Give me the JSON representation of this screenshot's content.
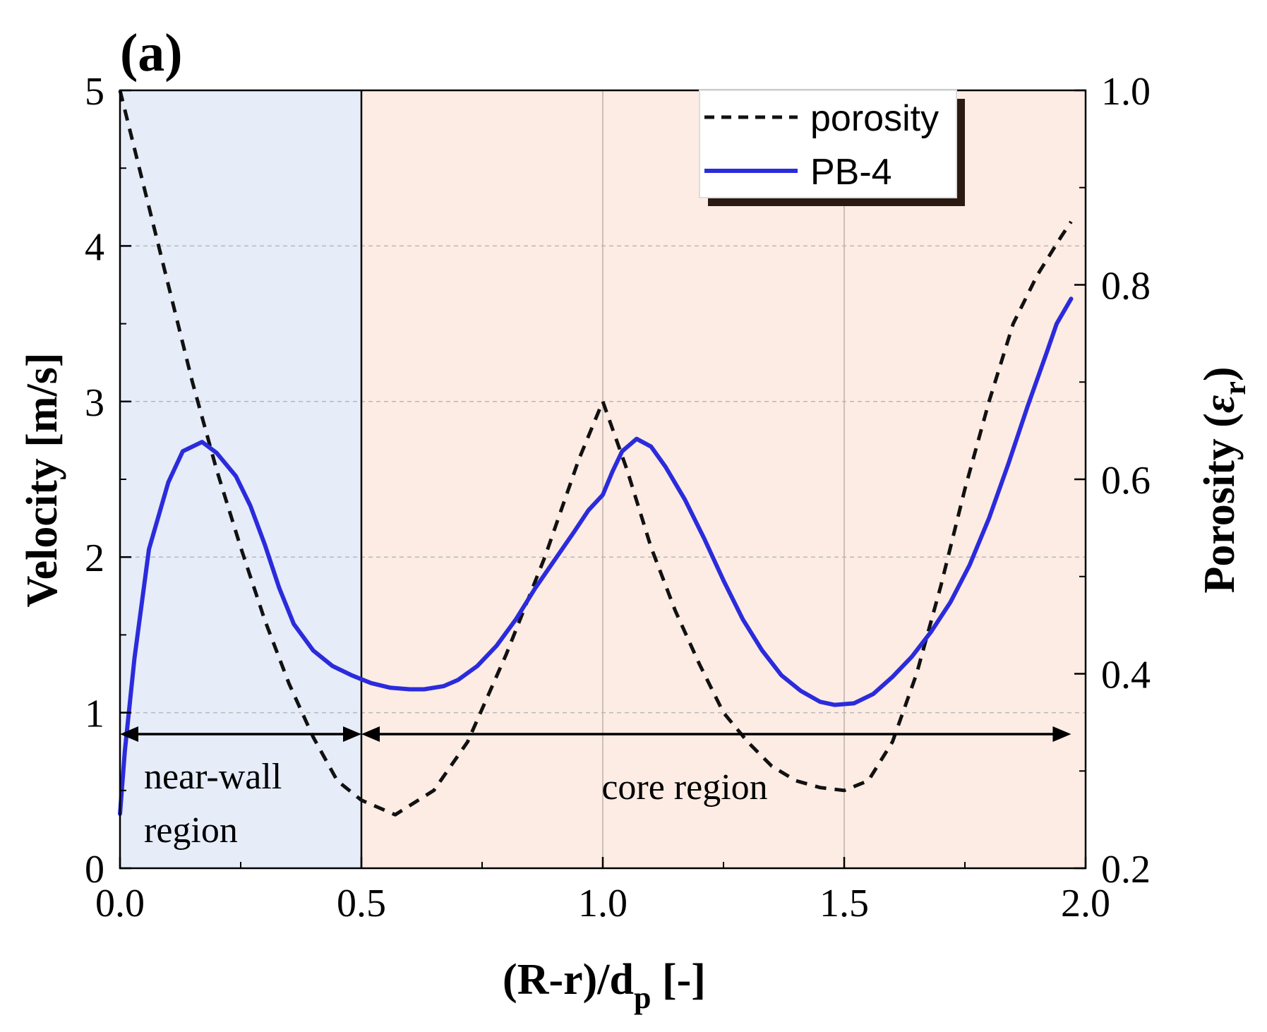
{
  "panel_label": "(a)",
  "chart_data": {
    "type": "line",
    "title": "",
    "xlabel": "(R-r)/d",
    "xlabel_sub": "p",
    "xlabel_suffix": " [-]",
    "ylabel": "Velocity [m/s]",
    "y2label": "Porosity (",
    "y2label_symbol": "ε",
    "y2label_sub": "r",
    "y2label_suffix": ")",
    "xlim": [
      0.0,
      2.0
    ],
    "ylim": [
      0,
      5
    ],
    "y2lim": [
      0.2,
      1.0
    ],
    "xticks": [
      "0.0",
      "0.5",
      "1.0",
      "1.5",
      "2.0"
    ],
    "yticks": [
      "0",
      "1",
      "2",
      "3",
      "4",
      "5"
    ],
    "y2ticks": [
      "0.2",
      "0.4",
      "0.6",
      "0.8",
      "1.0"
    ],
    "regions": [
      {
        "name": "near-wall-region",
        "label_lines": [
          "near-wall",
          "region"
        ],
        "x_range": [
          0.0,
          0.5
        ],
        "color": "#e6ecf8"
      },
      {
        "name": "core-region",
        "label_lines": [
          "core region"
        ],
        "x_range": [
          0.5,
          2.0
        ],
        "color": "#fdece4"
      }
    ],
    "legend": [
      "porosity",
      "PB-4"
    ],
    "series": [
      {
        "name": "porosity",
        "axis": "right",
        "style": "dashed",
        "color": "#111111",
        "x": [
          0.0,
          0.05,
          0.1,
          0.15,
          0.2,
          0.25,
          0.3,
          0.35,
          0.4,
          0.45,
          0.5,
          0.57,
          0.65,
          0.72,
          0.8,
          0.88,
          0.95,
          1.0,
          1.05,
          1.1,
          1.15,
          1.2,
          1.25,
          1.3,
          1.35,
          1.4,
          1.45,
          1.5,
          1.55,
          1.6,
          1.65,
          1.7,
          1.75,
          1.8,
          1.85,
          1.9,
          1.95,
          1.97
        ],
        "values": [
          1.0,
          0.9,
          0.8,
          0.7,
          0.61,
          0.53,
          0.455,
          0.39,
          0.335,
          0.29,
          0.27,
          0.255,
          0.28,
          0.33,
          0.42,
          0.52,
          0.62,
          0.68,
          0.61,
          0.53,
          0.465,
          0.41,
          0.36,
          0.33,
          0.305,
          0.29,
          0.283,
          0.28,
          0.29,
          0.33,
          0.4,
          0.49,
          0.59,
          0.68,
          0.76,
          0.81,
          0.85,
          0.865
        ]
      },
      {
        "name": "PB-4",
        "axis": "left",
        "style": "solid",
        "color": "#2b2bdc",
        "x": [
          0.0,
          0.01,
          0.03,
          0.06,
          0.1,
          0.13,
          0.17,
          0.2,
          0.24,
          0.27,
          0.3,
          0.33,
          0.36,
          0.4,
          0.44,
          0.48,
          0.52,
          0.56,
          0.6,
          0.63,
          0.67,
          0.7,
          0.74,
          0.78,
          0.82,
          0.86,
          0.9,
          0.94,
          0.97,
          1.0,
          1.02,
          1.04,
          1.07,
          1.1,
          1.13,
          1.17,
          1.21,
          1.25,
          1.29,
          1.33,
          1.37,
          1.41,
          1.45,
          1.48,
          1.52,
          1.56,
          1.6,
          1.64,
          1.68,
          1.72,
          1.76,
          1.8,
          1.84,
          1.88,
          1.92,
          1.94,
          1.97
        ],
        "values": [
          0.35,
          0.75,
          1.35,
          2.05,
          2.48,
          2.68,
          2.74,
          2.67,
          2.52,
          2.33,
          2.08,
          1.8,
          1.57,
          1.4,
          1.3,
          1.24,
          1.19,
          1.16,
          1.15,
          1.15,
          1.17,
          1.21,
          1.3,
          1.43,
          1.6,
          1.8,
          1.98,
          2.16,
          2.3,
          2.4,
          2.55,
          2.68,
          2.76,
          2.71,
          2.58,
          2.37,
          2.12,
          1.85,
          1.6,
          1.4,
          1.24,
          1.14,
          1.07,
          1.05,
          1.06,
          1.12,
          1.23,
          1.36,
          1.52,
          1.71,
          1.95,
          2.25,
          2.6,
          2.97,
          3.32,
          3.5,
          3.66
        ]
      }
    ]
  }
}
